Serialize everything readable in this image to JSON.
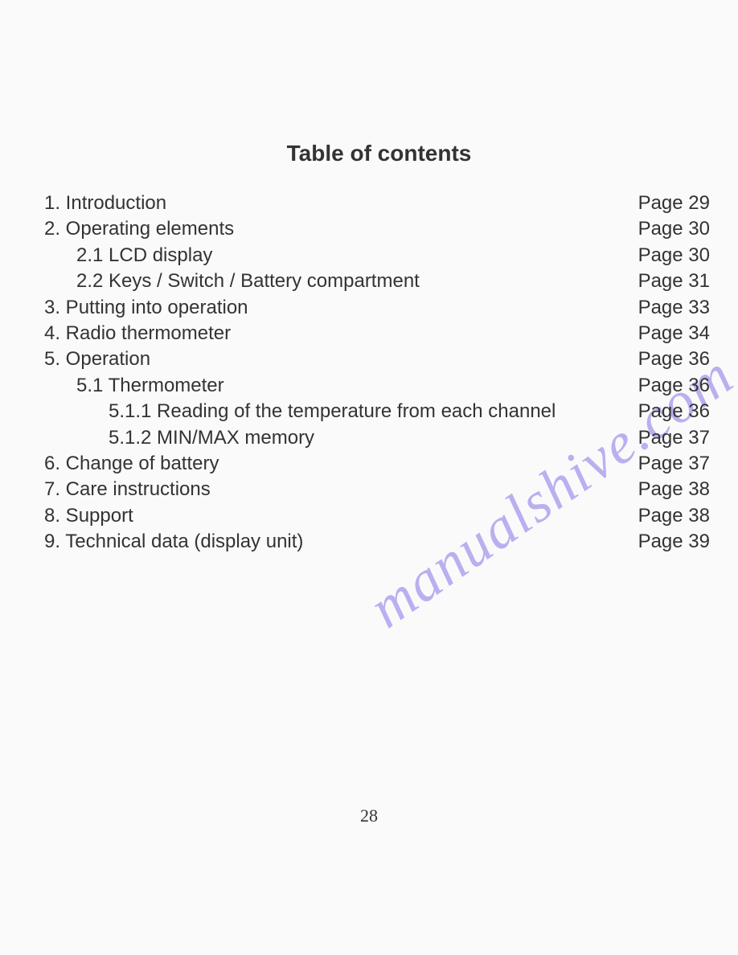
{
  "title": "Table of contents",
  "watermark_text": "manualshive.com",
  "page_number": "28",
  "toc_items": [
    {
      "text": "1. Introduction",
      "page": "Page 29",
      "indent": 0
    },
    {
      "text": "2. Operating elements",
      "page": "Page 30",
      "indent": 0
    },
    {
      "text": "2.1 LCD display",
      "page": "Page 30",
      "indent": 1
    },
    {
      "text": "2.2 Keys / Switch / Battery compartment",
      "page": "Page 31",
      "indent": 1
    },
    {
      "text": "3. Putting into operation",
      "page": "Page 33",
      "indent": 0
    },
    {
      "text": "4. Radio thermometer",
      "page": "Page 34",
      "indent": 0
    },
    {
      "text": "5. Operation",
      "page": "Page 36",
      "indent": 0
    },
    {
      "text": "5.1 Thermometer",
      "page": "Page 36",
      "indent": 1
    },
    {
      "text": "5.1.1 Reading of the temperature from each channel",
      "page": "Page 36",
      "indent": 2
    },
    {
      "text": "5.1.2 MIN/MAX memory",
      "page": "Page 37",
      "indent": 2
    },
    {
      "text": "6. Change of battery",
      "page": "Page 37",
      "indent": 0
    },
    {
      "text": "7. Care instructions",
      "page": "Page 38",
      "indent": 0
    },
    {
      "text": "8. Support",
      "page": "Page 38",
      "indent": 0
    },
    {
      "text": "9. Technical data (display unit)",
      "page": "Page 39",
      "indent": 0
    }
  ],
  "colors": {
    "background": "#fafafb",
    "text": "#333333",
    "watermark": "#b8b0ef"
  },
  "typography": {
    "title_fontsize": 28,
    "body_fontsize": 24,
    "page_number_fontsize": 22
  }
}
